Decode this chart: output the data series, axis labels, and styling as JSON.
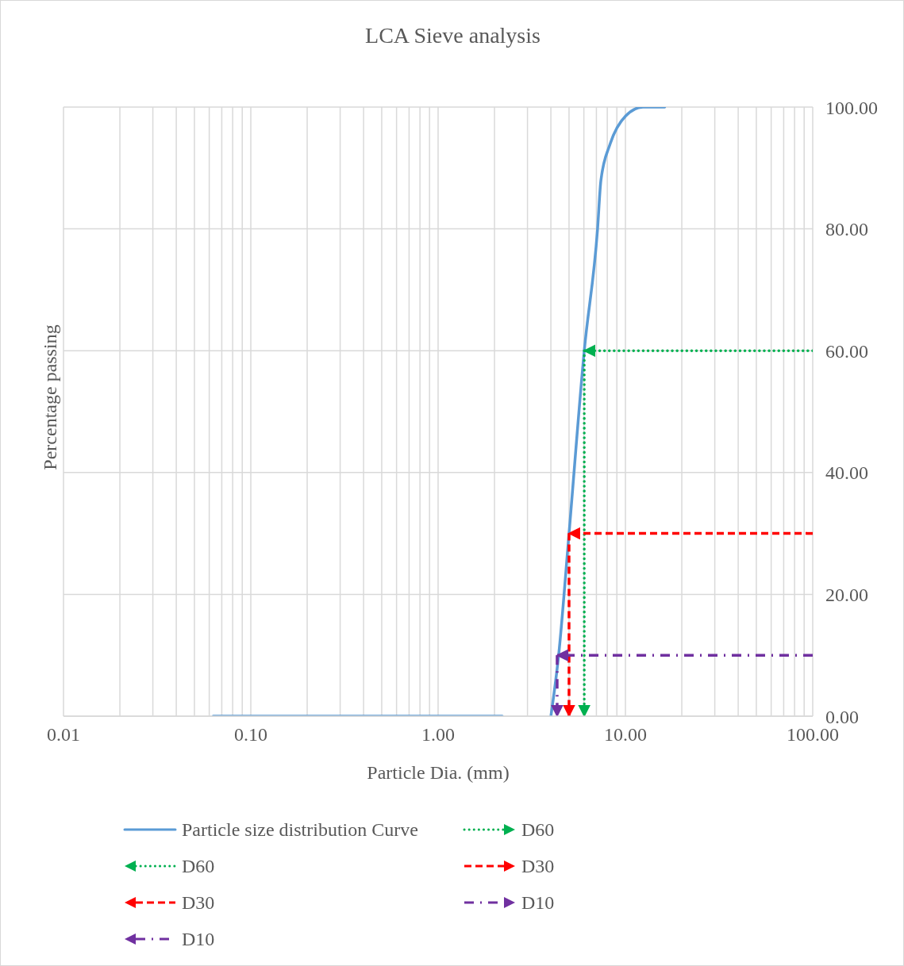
{
  "chart_data": {
    "type": "line",
    "title": "LCA Sieve analysis",
    "xlabel": "Particle Dia. (mm)",
    "ylabel": "Percentage passing",
    "log": "x",
    "grid": true,
    "legend": "bottom",
    "marker": "none",
    "xlim": [
      0.01,
      100
    ],
    "xticks": [
      {
        "value": 0.01,
        "label": "0.01"
      },
      {
        "value": 0.02,
        "label": null
      },
      {
        "value": 0.03,
        "label": null
      },
      {
        "value": 0.04,
        "label": null
      },
      {
        "value": 0.05,
        "label": null
      },
      {
        "value": 0.06,
        "label": null
      },
      {
        "value": 0.07,
        "label": null
      },
      {
        "value": 0.08,
        "label": null
      },
      {
        "value": 0.09,
        "label": null
      },
      {
        "value": 0.1,
        "label": "0.10"
      },
      {
        "value": 0.2,
        "label": null
      },
      {
        "value": 0.3,
        "label": null
      },
      {
        "value": 0.4,
        "label": null
      },
      {
        "value": 0.5,
        "label": null
      },
      {
        "value": 0.6,
        "label": null
      },
      {
        "value": 0.7,
        "label": null
      },
      {
        "value": 0.8,
        "label": null
      },
      {
        "value": 0.9,
        "label": null
      },
      {
        "value": 1,
        "label": "1.00"
      },
      {
        "value": 2,
        "label": null
      },
      {
        "value": 3,
        "label": null
      },
      {
        "value": 4,
        "label": null
      },
      {
        "value": 5,
        "label": null
      },
      {
        "value": 6,
        "label": null
      },
      {
        "value": 7,
        "label": null
      },
      {
        "value": 8,
        "label": null
      },
      {
        "value": 9,
        "label": null
      },
      {
        "value": 10,
        "label": "10.00"
      },
      {
        "value": 20,
        "label": null
      },
      {
        "value": 30,
        "label": null
      },
      {
        "value": 40,
        "label": null
      },
      {
        "value": 50,
        "label": null
      },
      {
        "value": 60,
        "label": null
      },
      {
        "value": 70,
        "label": null
      },
      {
        "value": 80,
        "label": null
      },
      {
        "value": 90,
        "label": null
      },
      {
        "value": 100,
        "label": "100.00"
      }
    ],
    "ylim": [
      0,
      100
    ],
    "yticks": [
      {
        "value": 0,
        "label": "0.00"
      },
      {
        "value": 20,
        "label": "20.00"
      },
      {
        "value": 40,
        "label": "40.00"
      },
      {
        "value": 60,
        "label": "60.00"
      },
      {
        "value": 80,
        "label": "80.00"
      },
      {
        "value": 100,
        "label": "100.00"
      }
    ],
    "series": [
      {
        "name": "Particle size distribution Curve",
        "color": "#5b9bd5",
        "line_style": "solid",
        "x": [
          0.063,
          0.15,
          0.3,
          0.6,
          1.18,
          2.2,
          3,
          4.0,
          4.4,
          5.0,
          6.03,
          7.1,
          7.4,
          8.3,
          10,
          12.4,
          16.2
        ],
        "values": [
          0,
          0,
          0,
          0,
          0,
          0,
          null,
          0,
          10,
          30,
          60,
          80,
          88,
          94,
          98.5,
          100,
          100
        ]
      },
      {
        "name": "D60",
        "color": "#00b050",
        "line_style": "dotted",
        "x": [
          6.03,
          6.03
        ],
        "values": [
          60,
          0
        ]
      },
      {
        "name": "D60",
        "color": "#00b050",
        "line_style": "dotted",
        "x": [
          100,
          6.03
        ],
        "values": [
          60,
          60
        ]
      },
      {
        "name": "D30",
        "color": "#ff0000",
        "line_style": "dashed",
        "x": [
          5.0,
          5.0
        ],
        "values": [
          30,
          0
        ]
      },
      {
        "name": "D30",
        "color": "#ff0000",
        "line_style": "dashed",
        "x": [
          100,
          5.0
        ],
        "values": [
          30,
          30
        ]
      },
      {
        "name": "D10",
        "color": "#7030a0",
        "line_style": "dashdot",
        "x": [
          4.32,
          4.32
        ],
        "values": [
          10,
          0
        ]
      },
      {
        "name": "D10",
        "color": "#7030a0",
        "line_style": "dashdot",
        "x": [
          100,
          4.32
        ],
        "values": [
          10,
          10
        ]
      }
    ]
  }
}
